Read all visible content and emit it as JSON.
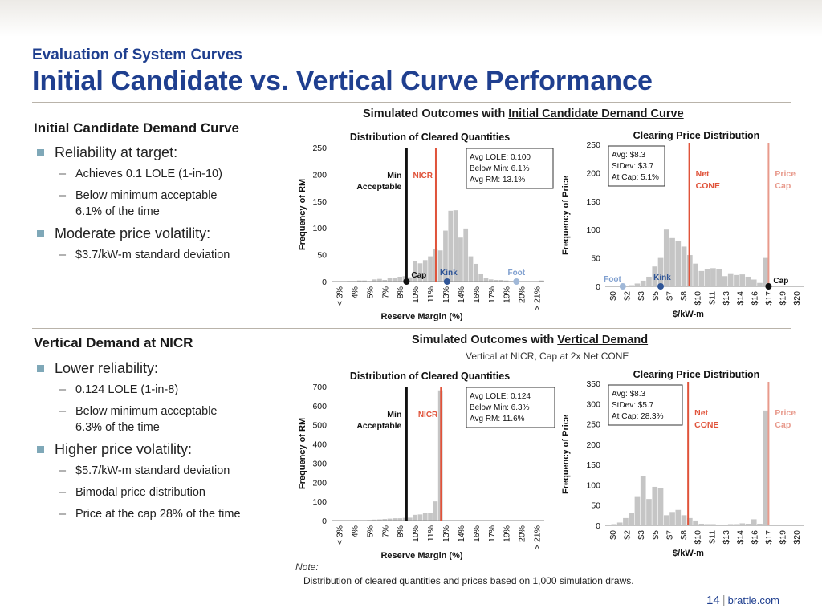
{
  "header": {
    "kicker": "Evaluation of System Curves",
    "title": "Initial Candidate vs. Vertical Curve Performance"
  },
  "left": {
    "section1": {
      "heading": "Initial Candidate Demand Curve",
      "b1": "Reliability at target:",
      "b1_sub": [
        "Achieves 0.1 LOLE (1-in-10)",
        "Below minimum acceptable 6.1% of the time"
      ],
      "b2": "Moderate price volatility:",
      "b2_sub": [
        "$3.7/kW-m standard deviation"
      ]
    },
    "section2": {
      "heading": "Vertical Demand at NICR",
      "b1": "Lower reliability:",
      "b1_sub": [
        "0.124 LOLE (1-in-8)",
        "Below minimum acceptable 6.3% of the time"
      ],
      "b2": "Higher price volatility:",
      "b2_sub": [
        "$5.7/kW-m standard deviation",
        "Bimodal price distribution",
        "Price at the cap 28% of the time"
      ]
    }
  },
  "outcomes1": {
    "prefix": "Simulated Outcomes with ",
    "emph": "Initial Candidate Demand Curve"
  },
  "outcomes2": {
    "prefix": "Simulated Outcomes with ",
    "emph": "Vertical Demand",
    "sub": "Vertical at NICR, Cap at 2x Net CONE"
  },
  "chart_data": [
    {
      "id": "q1",
      "type": "bar",
      "title": "Distribution  of Cleared Quantities",
      "xlabel": "Reserve Margin (%)",
      "ylabel": "Frequency of RM",
      "xticks": [
        "< 3%",
        "4%",
        "5%",
        "7%",
        "8%",
        "10%",
        "11%",
        "13%",
        "14%",
        "16%",
        "17%",
        "19%",
        "20%",
        "> 21%"
      ],
      "ylim": [
        0,
        250
      ],
      "yticks": [
        0,
        50,
        100,
        150,
        200,
        250
      ],
      "values": [
        0,
        0,
        0,
        1,
        1,
        2,
        2,
        1,
        4,
        5,
        3,
        6,
        7,
        9,
        10,
        8,
        38,
        34,
        40,
        47,
        61,
        58,
        95,
        132,
        133,
        82,
        99,
        47,
        33,
        15,
        7,
        4,
        3,
        3,
        2,
        1,
        1,
        0,
        0,
        0,
        0,
        2
      ],
      "bar_color": "#c5c5c5",
      "lines": [
        {
          "label": "Min Acceptable",
          "bin": 14.8,
          "color": "#111111"
        },
        {
          "label": "NICR",
          "bin": 20.6,
          "color": "#e0533a"
        }
      ],
      "markers": [
        {
          "label": "Cap",
          "bin": 14.8,
          "color": "#111111"
        },
        {
          "label": "Kink",
          "bin": 22.8,
          "color": "#2f5597"
        },
        {
          "label": "Foot",
          "bin": 36.5,
          "color": "#a0b8d8"
        }
      ],
      "stats": [
        "Avg LOLE: 0.100",
        "Below Min: 6.1%",
        "Avg RM: 13.1%"
      ]
    },
    {
      "id": "p1",
      "type": "bar",
      "title": "Clearing Price Distribution",
      "xlabel": "$/kW-m",
      "ylabel": "Frequency of Price",
      "xticks": [
        "$0",
        "$2",
        "$3",
        "$5",
        "$7",
        "$8",
        "$10",
        "$11",
        "$13",
        "$14",
        "$16",
        "$17",
        "$19",
        "$20"
      ],
      "ylim": [
        0,
        250
      ],
      "yticks": [
        0,
        50,
        100,
        150,
        200,
        250
      ],
      "values": [
        0,
        0,
        0,
        0,
        2,
        5,
        10,
        17,
        35,
        50,
        100,
        85,
        80,
        70,
        55,
        40,
        27,
        31,
        32,
        30,
        18,
        23,
        20,
        21,
        17,
        12,
        6,
        50,
        0,
        0,
        0,
        0,
        0,
        0
      ],
      "bar_color": "#c5c5c5",
      "lines": [
        {
          "label": "Net CONE",
          "bin": 14.4,
          "color": "#e0533a"
        },
        {
          "label": "Price Cap",
          "bin": 28.0,
          "color": "#e89a8c"
        }
      ],
      "markers": [
        {
          "label": "Foot",
          "bin": 3.0,
          "color": "#a0b8d8"
        },
        {
          "label": "Kink",
          "bin": 9.5,
          "color": "#2f5597"
        },
        {
          "label": "Cap",
          "bin": 28.0,
          "color": "#111111"
        }
      ],
      "stats": [
        "Avg: $8.3",
        "StDev: $3.7",
        "At Cap: 5.1%"
      ]
    },
    {
      "id": "q2",
      "type": "bar",
      "title": "Distribution  of Cleared Quantities",
      "xlabel": "Reserve Margin (%)",
      "ylabel": "Frequency of RM",
      "xticks": [
        "< 3%",
        "4%",
        "5%",
        "7%",
        "8%",
        "10%",
        "11%",
        "13%",
        "14%",
        "16%",
        "17%",
        "19%",
        "20%",
        "> 21%"
      ],
      "ylim": [
        0,
        700
      ],
      "yticks": [
        0,
        100,
        200,
        300,
        400,
        500,
        600,
        700
      ],
      "values": [
        0,
        0,
        0,
        0,
        1,
        2,
        2,
        3,
        5,
        6,
        8,
        10,
        12,
        12,
        14,
        15,
        30,
        32,
        38,
        40,
        100,
        680,
        0,
        0,
        0,
        0,
        0,
        0,
        0,
        0,
        0,
        0,
        0,
        0,
        0,
        0,
        0,
        0,
        0,
        0,
        0,
        0
      ],
      "bar_color": "#c5c5c5",
      "lines": [
        {
          "label": "Min Acceptable",
          "bin": 14.8,
          "color": "#111111"
        },
        {
          "label": "NICR",
          "bin": 21.6,
          "color": "#e0533a"
        }
      ],
      "markers": [],
      "stats": [
        "Avg LOLE: 0.124",
        "Below Min: 6.3%",
        "Avg RM: 11.6%"
      ]
    },
    {
      "id": "p2",
      "type": "bar",
      "title": "Clearing Price Distribution",
      "xlabel": "$/kW-m",
      "ylabel": "Frequency of Price",
      "xticks": [
        "$0",
        "$2",
        "$3",
        "$5",
        "$7",
        "$8",
        "$10",
        "$11",
        "$13",
        "$14",
        "$16",
        "$17",
        "$19",
        "$20"
      ],
      "ylim": [
        0,
        350
      ],
      "yticks": [
        0,
        50,
        100,
        150,
        200,
        250,
        300,
        350
      ],
      "values": [
        0,
        3,
        7,
        18,
        30,
        70,
        122,
        65,
        95,
        92,
        25,
        33,
        38,
        25,
        18,
        12,
        4,
        3,
        3,
        2,
        2,
        3,
        3,
        5,
        4,
        15,
        4,
        283,
        0,
        0,
        0,
        0,
        0,
        0
      ],
      "bar_color": "#c5c5c5",
      "lines": [
        {
          "label": "Net CONE",
          "bin": 14.2,
          "color": "#e0533a"
        },
        {
          "label": "Price Cap",
          "bin": 28.0,
          "color": "#e89a8c"
        }
      ],
      "markers": [],
      "stats": [
        "Avg: $8.3",
        "StDev: $5.7",
        "At Cap: 28.3%"
      ]
    }
  ],
  "note": {
    "label": "Note:",
    "text": "Distribution of cleared quantities and prices based on 1,000 simulation draws."
  },
  "footer": {
    "page": "14",
    "site": "brattle.com"
  }
}
